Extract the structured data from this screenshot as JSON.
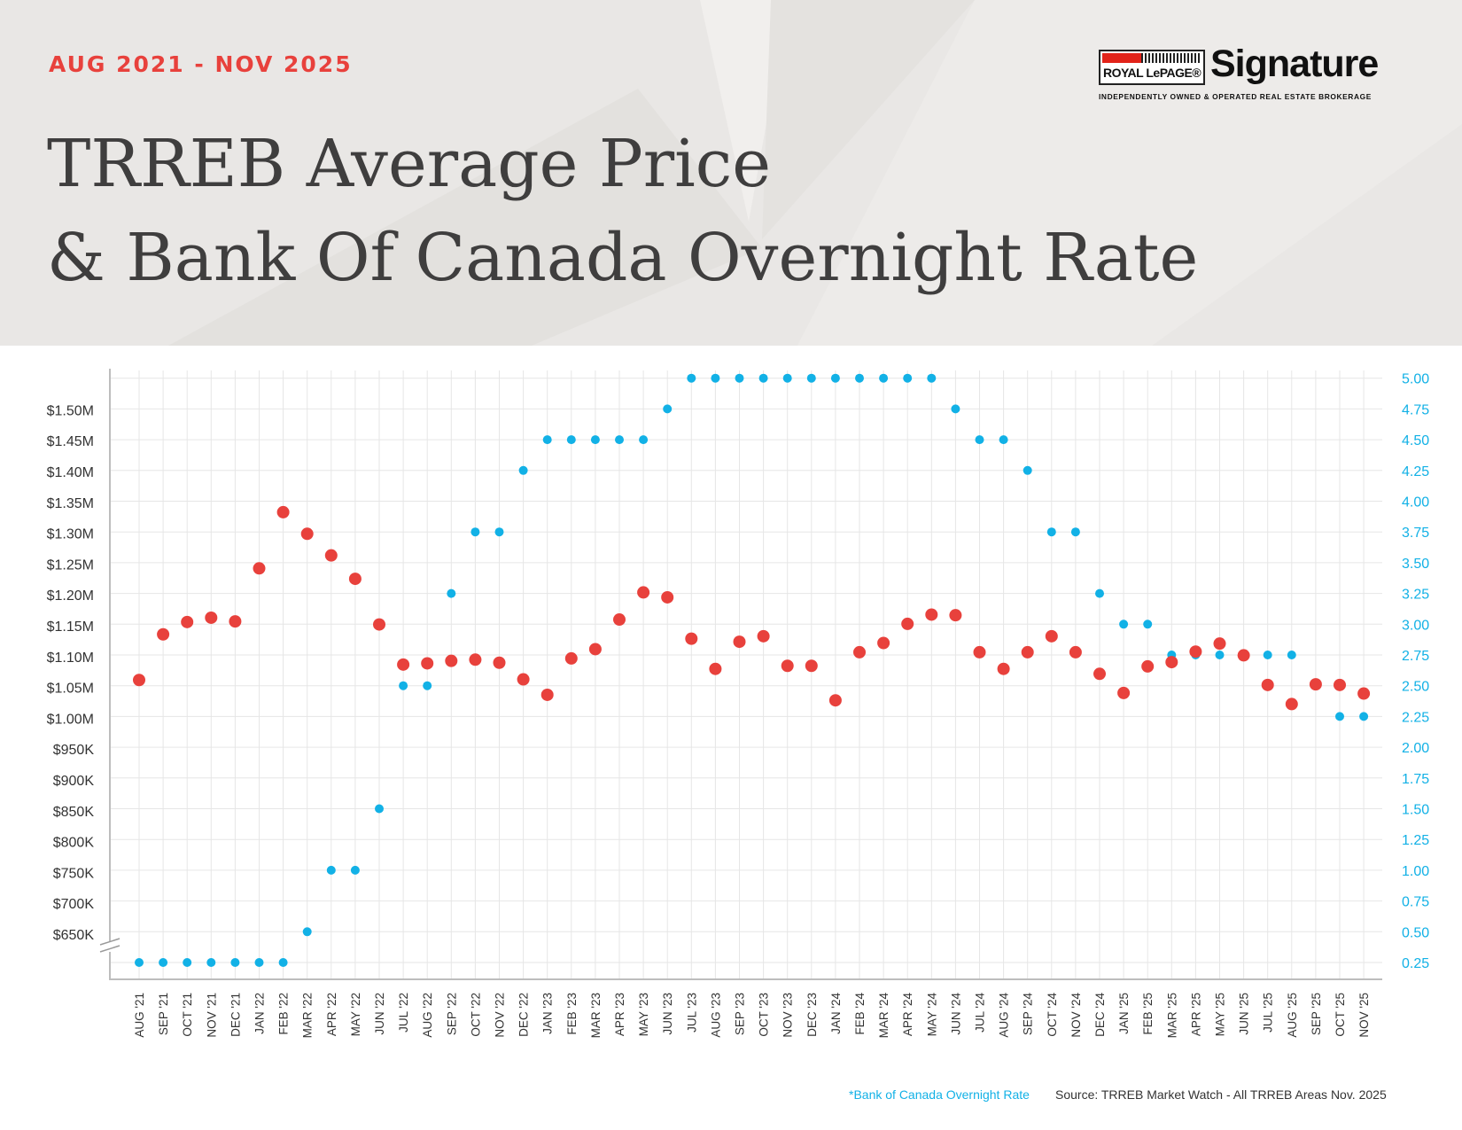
{
  "header": {
    "date_range": "AUG 2021 - NOV 2025",
    "title_line1": "TRREB Average Price",
    "title_line2": "& Bank Of Canada Overnight Rate"
  },
  "logo": {
    "brand": "ROYAL LePAGE®",
    "name": "Signature",
    "tagline": "INDEPENDENTLY OWNED & OPERATED REAL ESTATE BROKERAGE"
  },
  "footer": {
    "note": "*Bank of Canada Overnight Rate",
    "source": "Source: TRREB Market Watch - All TRREB Areas Nov. 2025"
  },
  "colors": {
    "price": "#e8413c",
    "rate": "#12b1e6",
    "title": "#3f3e3e",
    "header_bg": "#e9e7e5",
    "grid": "#e6e6e6"
  },
  "chart_data": {
    "type": "scatter",
    "title": "TRREB Average Price & Bank Of Canada Overnight Rate",
    "grid": true,
    "categories": [
      "AUG '21",
      "SEP '21",
      "OCT '21",
      "NOV '21",
      "DEC '21",
      "JAN '22",
      "FEB '22",
      "MAR '22",
      "APR '22",
      "MAY '22",
      "JUN '22",
      "JUL '22",
      "AUG '22",
      "SEP '22",
      "OCT '22",
      "NOV '22",
      "DEC '22",
      "JAN '23",
      "FEB '23",
      "MAR '23",
      "APR '23",
      "MAY '23",
      "JUN '23",
      "JUL '23",
      "AUG '23",
      "SEP '23",
      "OCT '23",
      "NOV '23",
      "DEC '23",
      "JAN '24",
      "FEB '24",
      "MAR '24",
      "APR '24",
      "MAY '24",
      "JUN '24",
      "JUL '24",
      "AUG '24",
      "SEP '24",
      "OCT '24",
      "NOV '24",
      "DEC '24",
      "JAN '25",
      "FEB '25",
      "MAR '25",
      "APR '25",
      "MAY '25",
      "JUN '25",
      "JUL '25",
      "AUG '25",
      "SEP '25",
      "OCT '25",
      "NOV '25"
    ],
    "left_axis": {
      "ticks": [
        650000,
        700000,
        750000,
        800000,
        850000,
        900000,
        950000,
        1000000,
        1050000,
        1100000,
        1150000,
        1200000,
        1250000,
        1300000,
        1350000,
        1400000,
        1450000,
        1500000
      ],
      "tick_labels": [
        "$650K",
        "$700K",
        "$750K",
        "$800K",
        "$850K",
        "$900K",
        "$950K",
        "$1.00M",
        "$1.05M",
        "$1.10M",
        "$1.15M",
        "$1.20M",
        "$1.25M",
        "$1.30M",
        "$1.35M",
        "$1.40M",
        "$1.45M",
        "$1.50M"
      ],
      "axis_break": true
    },
    "right_axis": {
      "ticks": [
        0.25,
        0.5,
        0.75,
        1.0,
        1.25,
        1.5,
        1.75,
        2.0,
        2.25,
        2.5,
        2.75,
        3.0,
        3.25,
        3.5,
        3.75,
        4.0,
        4.25,
        4.5,
        4.75,
        5.0
      ],
      "tick_labels": [
        "0.25",
        "0.50",
        "0.75",
        "1.00",
        "1.25",
        "1.50",
        "1.75",
        "2.00",
        "2.25",
        "2.50",
        "2.75",
        "3.00",
        "3.25",
        "3.50",
        "3.75",
        "4.00",
        "4.25",
        "4.50",
        "4.75",
        "5.00"
      ]
    },
    "series": [
      {
        "axis": "left",
        "values": [
          1062000,
          1136000,
          1156000,
          1163000,
          1157000,
          1243000,
          1334000,
          1299000,
          1264000,
          1226000,
          1152000,
          1087000,
          1089000,
          1093000,
          1095000,
          1090000,
          1063000,
          1038000,
          1097000,
          1112000,
          1160000,
          1204000,
          1196000,
          1129000,
          1080000,
          1124000,
          1133000,
          1085000,
          1085000,
          1029000,
          1107000,
          1122000,
          1153000,
          1168000,
          1167000,
          1107000,
          1080000,
          1107000,
          1133000,
          1107000,
          1072000,
          1041000,
          1084000,
          1091000,
          1108000,
          1121000,
          1102000,
          1054000,
          1023000,
          1055000,
          1054000,
          1040000
        ]
      },
      {
        "axis": "right",
        "values": [
          0.25,
          0.25,
          0.25,
          0.25,
          0.25,
          0.25,
          0.25,
          0.5,
          1.0,
          1.0,
          1.5,
          2.5,
          2.5,
          3.25,
          3.75,
          3.75,
          4.25,
          4.5,
          4.5,
          4.5,
          4.5,
          4.5,
          4.75,
          5.0,
          5.0,
          5.0,
          5.0,
          5.0,
          5.0,
          5.0,
          5.0,
          5.0,
          5.0,
          5.0,
          4.75,
          4.5,
          4.5,
          4.25,
          3.75,
          3.75,
          3.25,
          3.0,
          3.0,
          2.75,
          2.75,
          2.75,
          2.75,
          2.75,
          2.75,
          2.5,
          2.25,
          2.25
        ]
      }
    ]
  }
}
